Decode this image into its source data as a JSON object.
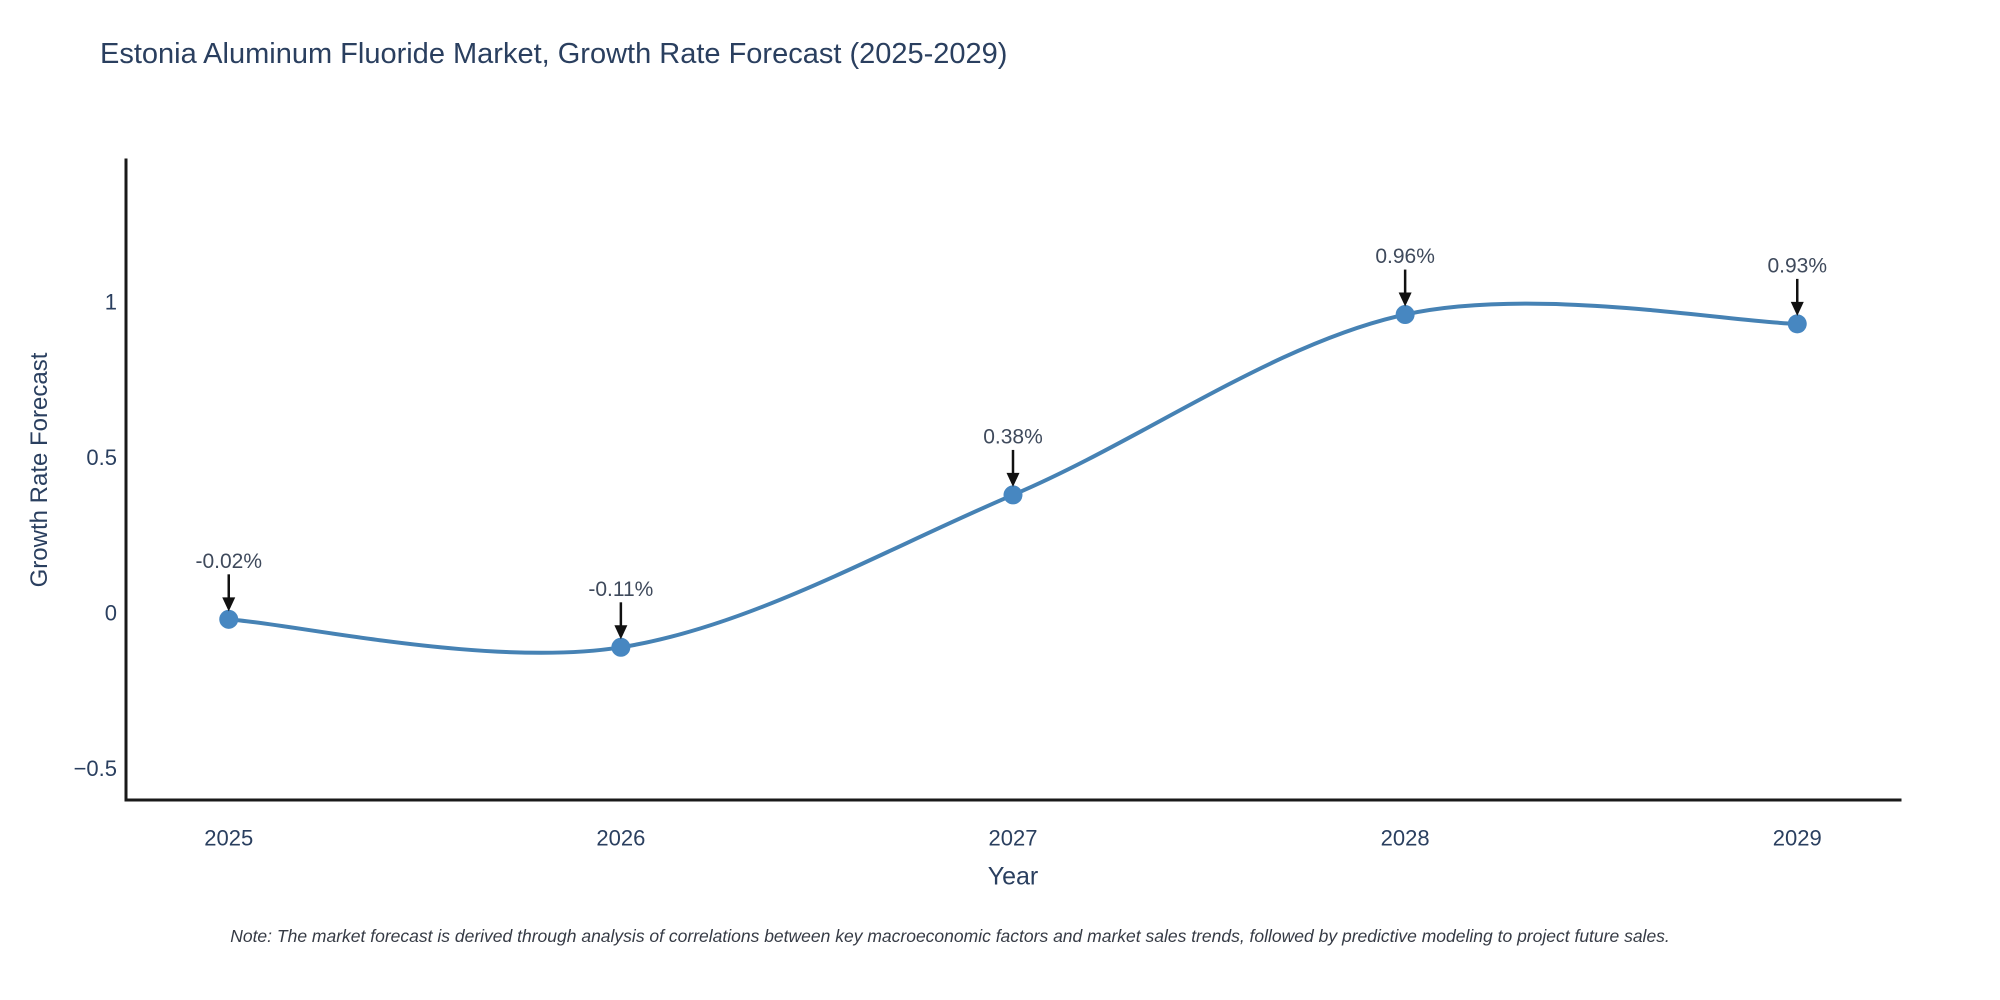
{
  "title": "Estonia Aluminum Fluoride Market, Growth Rate Forecast (2025-2029)",
  "note": "Note: The market forecast is derived through analysis of correlations between key macroeconomic factors and market sales trends, followed by predictive modeling to project future sales.",
  "chart_data": {
    "type": "line",
    "line_shape": "spline",
    "title": "Estonia Aluminum Fluoride Market, Growth Rate Forecast (2025-2029)",
    "xlabel": "Year",
    "ylabel": "Growth Rate Forecast",
    "x": [
      2025,
      2026,
      2027,
      2028,
      2029
    ],
    "y": [
      -0.02,
      -0.11,
      0.38,
      0.96,
      0.93
    ],
    "point_labels": [
      "-0.02%",
      "-0.11%",
      "0.38%",
      "0.96%",
      "0.93%"
    ],
    "x_tick_values": [
      2025,
      2026,
      2027,
      2028,
      2029
    ],
    "x_tick_labels": [
      "2025",
      "2026",
      "2027",
      "2028",
      "2029"
    ],
    "y_tick_values": [
      -0.5,
      0,
      0.5,
      1
    ],
    "y_tick_labels": [
      "−0.5",
      "0",
      "0.5",
      "1"
    ],
    "xlim": [
      2024.738,
      2029.262
    ],
    "ylim": [
      -0.601,
      1.457
    ],
    "grid": false,
    "legend": false,
    "annotations_have_arrows": true,
    "colors": {
      "line": "#4682b4",
      "marker": "#4787c1",
      "axis": "#1a1a1a",
      "arrow": "#111111",
      "tick_text": "#2a3f5f",
      "annotation_text": "#3f4a5c"
    }
  }
}
